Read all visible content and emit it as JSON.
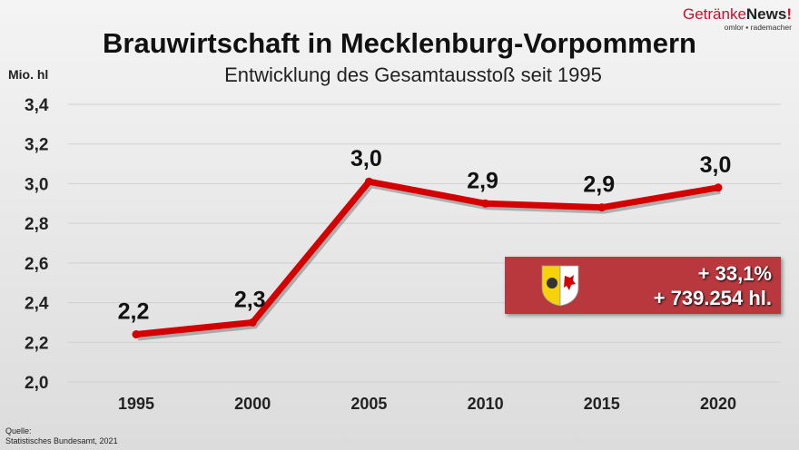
{
  "header": {
    "title": "Brauwirtschaft in Mecklenburg-Vorpommern",
    "subtitle": "Entwicklung des Gesamtausstoß seit 1995"
  },
  "logo": {
    "brand_part1": "Getränke",
    "brand_part2": "News",
    "brand_mark": "!",
    "tagline": "omlor ▪ rademacher"
  },
  "source": {
    "label": "Quelle:",
    "text": "Statistisches Bundesamt, 2021"
  },
  "highlight_box": {
    "percent": "+ 33,1%",
    "volume": "+ 739.254 hl.",
    "icon": "coat-of-arms-mecklenburg-vorpommern-icon",
    "color": "#b8383e"
  },
  "chart_data": {
    "type": "line",
    "title": "Brauwirtschaft in Mecklenburg-Vorpommern",
    "subtitle": "Entwicklung des Gesamtausstoß seit 1995",
    "ylabel": "Mio. hl",
    "xlabel": "",
    "categories": [
      "1995",
      "2000",
      "2005",
      "2010",
      "2015",
      "2020"
    ],
    "values": [
      2.24,
      2.3,
      3.01,
      2.9,
      2.88,
      2.98
    ],
    "data_labels": [
      "2,2",
      "2,3",
      "3,0",
      "2,9",
      "2,9",
      "3,0"
    ],
    "ylim": [
      2.0,
      3.4
    ],
    "yticks": [
      "2,0",
      "2,2",
      "2,4",
      "2,6",
      "2,8",
      "3,0",
      "3,2",
      "3,4"
    ],
    "grid": true,
    "line_color": "#d40000"
  }
}
